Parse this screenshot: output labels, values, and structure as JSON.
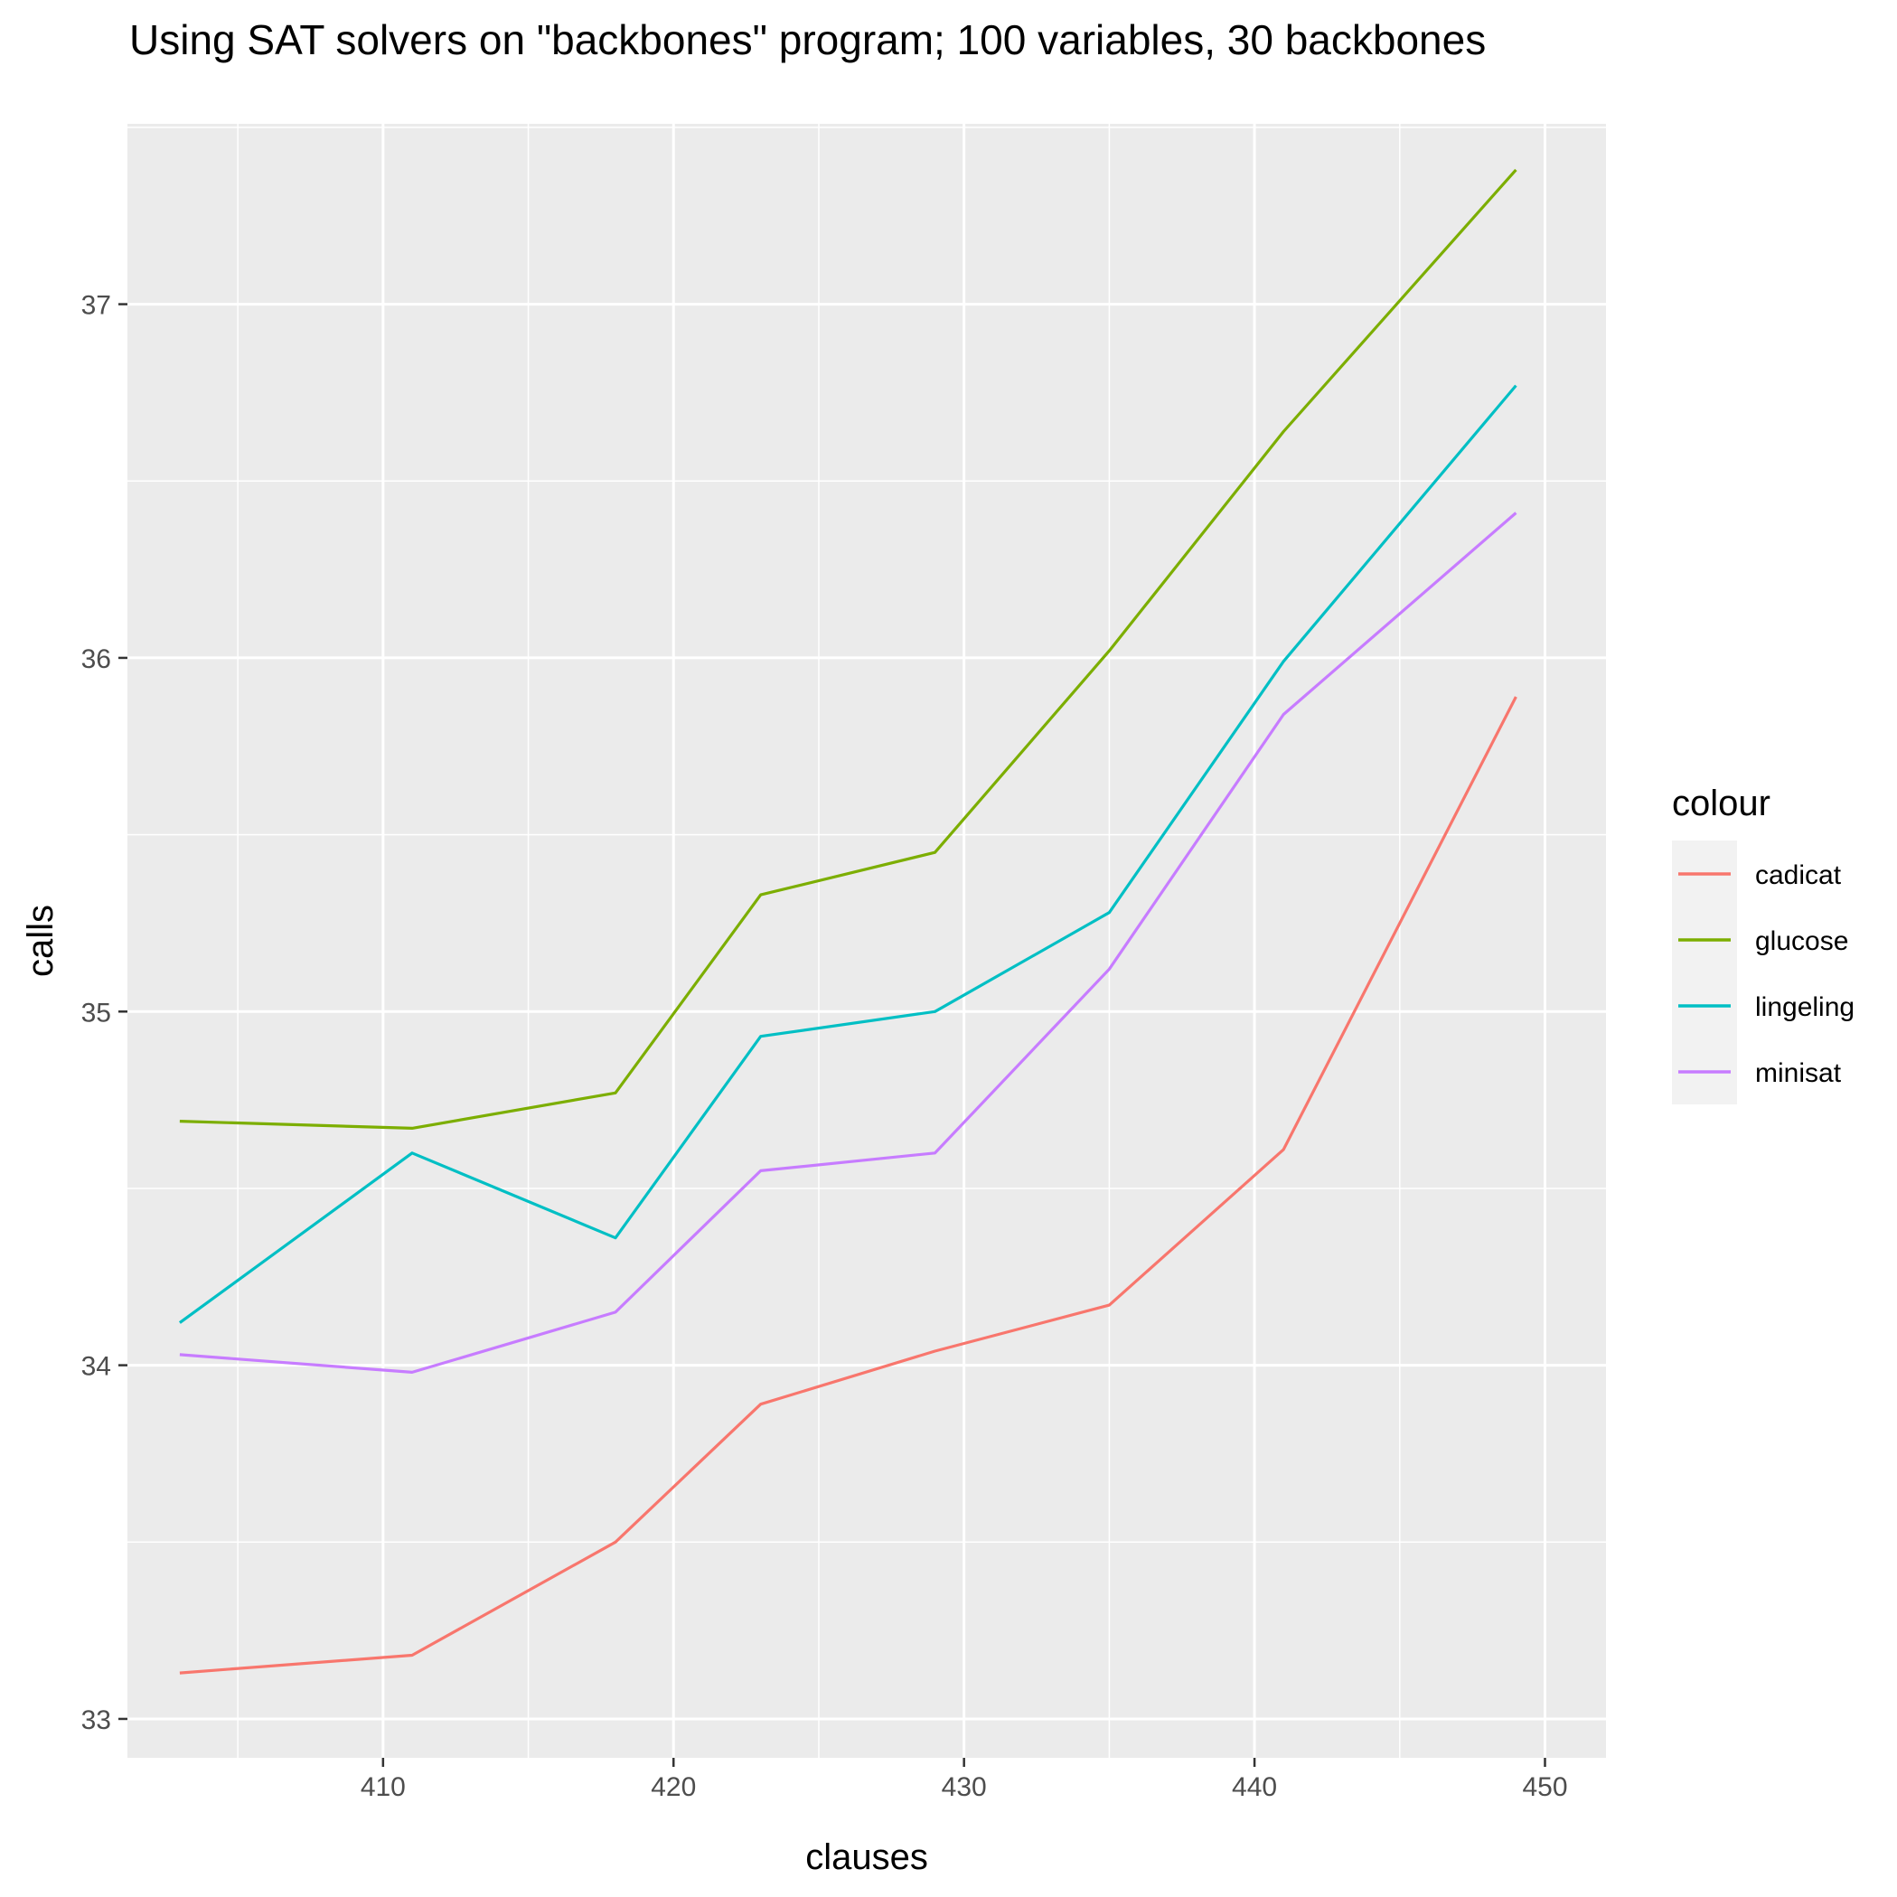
{
  "chart_data": {
    "type": "line",
    "title": "Using SAT solvers on \"backbones\" program; 100 variables, 30 backbones",
    "xlabel": "clauses",
    "ylabel": "calls",
    "xlim": [
      401.2,
      452.1
    ],
    "ylim": [
      32.89,
      37.51
    ],
    "x_ticks": [
      410,
      420,
      430,
      440,
      450
    ],
    "y_ticks": [
      33,
      34,
      35,
      36,
      37
    ],
    "grid": true,
    "legend": {
      "title": "colour",
      "position": "right"
    },
    "x": [
      403,
      411,
      418,
      423,
      429,
      435,
      441,
      449
    ],
    "series": [
      {
        "name": "cadicat",
        "color": "#F8766D",
        "values": [
          33.13,
          33.18,
          33.5,
          33.89,
          34.04,
          34.17,
          34.61,
          35.89
        ]
      },
      {
        "name": "glucose",
        "color": "#7CAE00",
        "values": [
          34.69,
          34.67,
          34.77,
          35.33,
          35.45,
          36.02,
          36.64,
          37.38
        ]
      },
      {
        "name": "lingeling",
        "color": "#00BFC4",
        "values": [
          34.12,
          34.6,
          34.36,
          34.93,
          35.0,
          35.28,
          35.99,
          36.77
        ]
      },
      {
        "name": "minisat",
        "color": "#C77CFF",
        "values": [
          34.03,
          33.98,
          34.15,
          34.55,
          34.6,
          35.12,
          35.84,
          36.41
        ]
      }
    ]
  }
}
